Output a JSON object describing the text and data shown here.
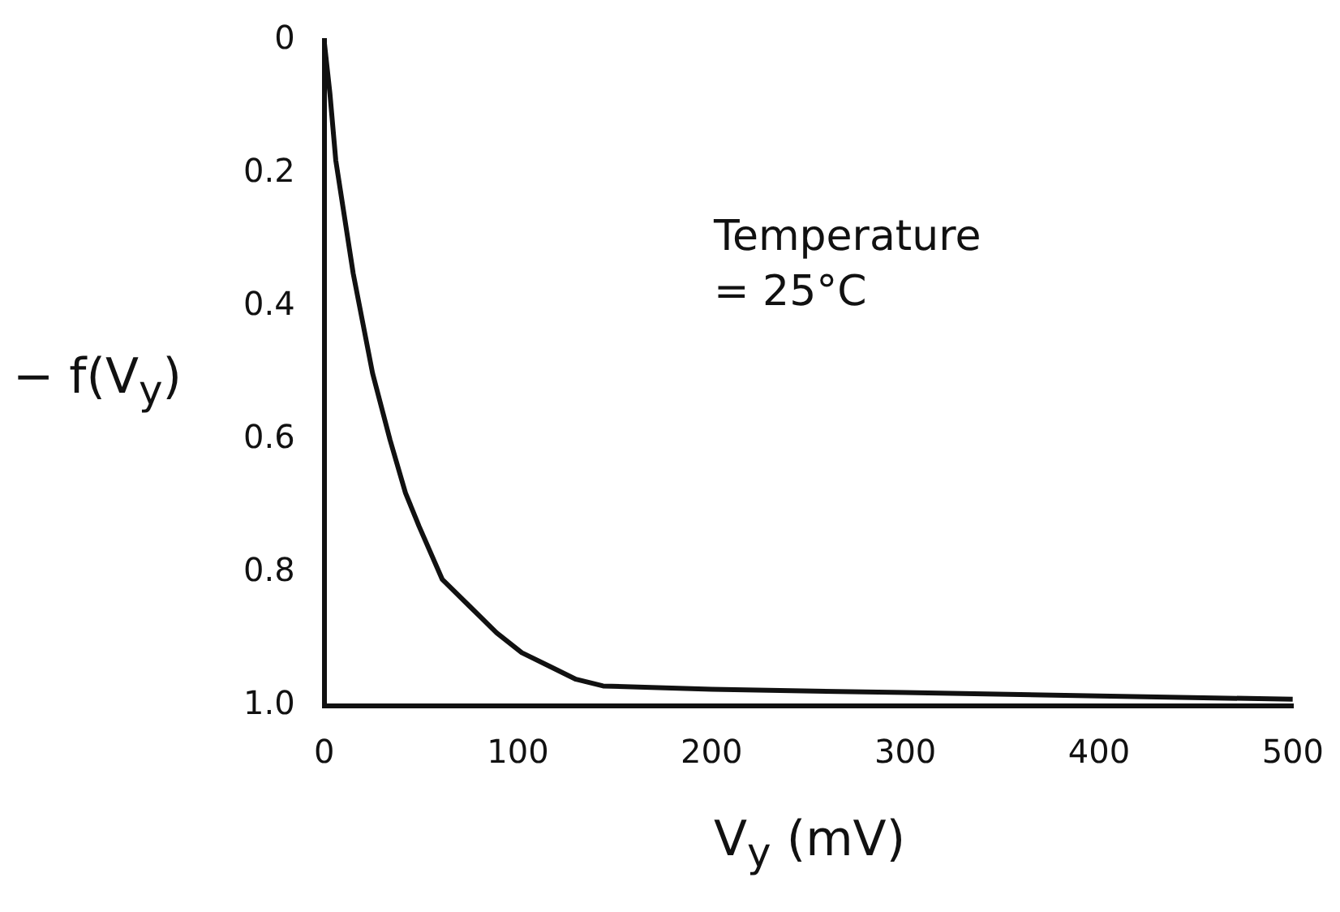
{
  "chart_data": {
    "type": "line",
    "xlabel": "V$_{y}$ (mV)",
    "ylabel": "− f(V$_{y}$)",
    "annotations": [
      "Temperature\n= 25°C"
    ],
    "x": [
      0,
      3,
      6,
      15,
      25,
      34,
      42,
      49,
      61,
      75,
      89,
      102,
      116,
      130,
      144,
      200,
      300,
      400,
      500
    ],
    "values": [
      0,
      0.08,
      0.18,
      0.35,
      0.5,
      0.6,
      0.68,
      0.73,
      0.81,
      0.85,
      0.89,
      0.92,
      0.94,
      0.96,
      0.97,
      0.975,
      0.98,
      0.985,
      0.99
    ],
    "color": "#111111",
    "xlim": [
      0,
      500
    ],
    "xticks": [
      0,
      100,
      200,
      300,
      400,
      500
    ],
    "ylim": [
      1,
      0
    ],
    "yticks": [
      0,
      0.2,
      0.4,
      0.6,
      0.8,
      {
        "value": 1,
        "label": "1.0"
      }
    ],
    "grid": false,
    "legend": false,
    "marker": "none",
    "line_style": "solid"
  }
}
